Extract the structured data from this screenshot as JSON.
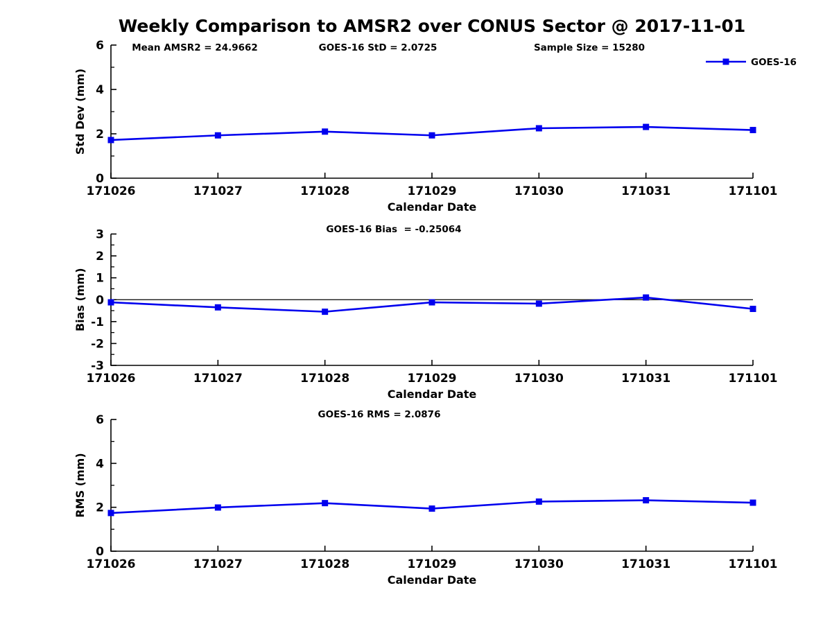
{
  "figure": {
    "title": "Weekly Comparison to AMSR2 over CONUS Sector @ 2017-11-01"
  },
  "colors": {
    "line": "#0000EE",
    "axis": "#000000",
    "text": "#000000",
    "background": "#FFFFFF"
  },
  "chart_data": [
    {
      "id": "stddev",
      "type": "line",
      "annotations": [
        "Mean AMSR2 = 24.9662",
        "GOES-16 StD = 2.0725",
        "Sample Size = 15280"
      ],
      "categories": [
        "171026",
        "171027",
        "171028",
        "171029",
        "171030",
        "171031",
        "171101"
      ],
      "series": [
        {
          "name": "GOES-16",
          "values": [
            1.72,
            1.93,
            2.1,
            1.93,
            2.25,
            2.31,
            2.17
          ]
        }
      ],
      "xlabel": "Calendar Date",
      "ylabel": "Std Dev (mm)",
      "ylim": [
        0,
        6
      ],
      "yticks_major": [
        0,
        2,
        4,
        6
      ],
      "yticks_minor": [
        1,
        3,
        5
      ],
      "zero_line": false,
      "grid": false,
      "legend": {
        "label": "GOES-16",
        "position": "top-right"
      }
    },
    {
      "id": "bias",
      "type": "line",
      "annotations": [
        "GOES-16 Bias  = -0.25064"
      ],
      "categories": [
        "171026",
        "171027",
        "171028",
        "171029",
        "171030",
        "171031",
        "171101"
      ],
      "series": [
        {
          "name": "GOES-16",
          "values": [
            -0.12,
            -0.35,
            -0.55,
            -0.12,
            -0.18,
            0.1,
            -0.42
          ]
        }
      ],
      "xlabel": "Calendar Date",
      "ylabel": "Bias (mm)",
      "ylim": [
        -3,
        3
      ],
      "yticks_major": [
        -3,
        -2,
        -1,
        0,
        1,
        2,
        3
      ],
      "yticks_minor": [
        -2.5,
        -1.5,
        -0.5,
        0.5,
        1.5,
        2.5
      ],
      "zero_line": true,
      "grid": false
    },
    {
      "id": "rms",
      "type": "line",
      "annotations": [
        "GOES-16 RMS = 2.0876"
      ],
      "categories": [
        "171026",
        "171027",
        "171028",
        "171029",
        "171030",
        "171031",
        "171101"
      ],
      "series": [
        {
          "name": "GOES-16",
          "values": [
            1.74,
            1.99,
            2.19,
            1.94,
            2.26,
            2.32,
            2.21
          ]
        }
      ],
      "xlabel": "Calendar Date",
      "ylabel": "RMS (mm)",
      "ylim": [
        0,
        6
      ],
      "yticks_major": [
        0,
        2,
        4,
        6
      ],
      "yticks_minor": [
        1,
        3,
        5
      ],
      "zero_line": false,
      "grid": false
    }
  ]
}
